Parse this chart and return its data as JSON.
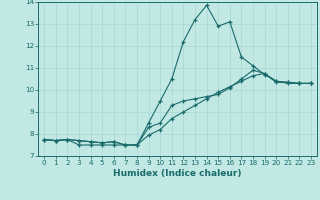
{
  "xlabel": "Humidex (Indice chaleur)",
  "xlim": [
    -0.5,
    23.5
  ],
  "ylim": [
    7,
    14
  ],
  "yticks": [
    7,
    8,
    9,
    10,
    11,
    12,
    13,
    14
  ],
  "xticks": [
    0,
    1,
    2,
    3,
    4,
    5,
    6,
    7,
    8,
    9,
    10,
    11,
    12,
    13,
    14,
    15,
    16,
    17,
    18,
    19,
    20,
    21,
    22,
    23
  ],
  "bg_color": "#c2e8e4",
  "line_color": "#1a6b6b",
  "grid_color": "#a8d8d4",
  "series1_x": [
    0,
    1,
    2,
    3,
    4,
    5,
    6,
    7,
    8,
    9,
    10,
    11,
    12,
    13,
    14,
    15,
    16,
    17,
    18,
    19,
    20,
    21,
    22,
    23
  ],
  "series1_y": [
    7.75,
    7.7,
    7.75,
    7.5,
    7.5,
    7.5,
    7.5,
    7.5,
    7.5,
    8.5,
    9.5,
    10.5,
    12.2,
    13.2,
    13.85,
    12.9,
    13.1,
    11.5,
    11.1,
    10.7,
    10.4,
    10.3,
    10.3,
    10.3
  ],
  "series2_x": [
    0,
    1,
    2,
    3,
    4,
    5,
    6,
    7,
    8,
    9,
    10,
    11,
    12,
    13,
    14,
    15,
    16,
    17,
    18,
    19,
    20,
    21,
    22,
    23
  ],
  "series2_y": [
    7.75,
    7.7,
    7.75,
    7.7,
    7.65,
    7.6,
    7.65,
    7.5,
    7.5,
    8.3,
    8.5,
    9.3,
    9.5,
    9.6,
    9.7,
    9.8,
    10.1,
    10.5,
    10.9,
    10.75,
    10.4,
    10.35,
    10.3,
    10.3
  ],
  "series3_x": [
    0,
    1,
    2,
    3,
    4,
    5,
    6,
    7,
    8,
    9,
    10,
    11,
    12,
    13,
    14,
    15,
    16,
    17,
    18,
    19,
    20,
    21,
    22,
    23
  ],
  "series3_y": [
    7.75,
    7.7,
    7.75,
    7.7,
    7.65,
    7.6,
    7.65,
    7.5,
    7.5,
    7.95,
    8.2,
    8.7,
    9.0,
    9.3,
    9.6,
    9.9,
    10.15,
    10.4,
    10.65,
    10.75,
    10.35,
    10.35,
    10.3,
    10.3
  ]
}
